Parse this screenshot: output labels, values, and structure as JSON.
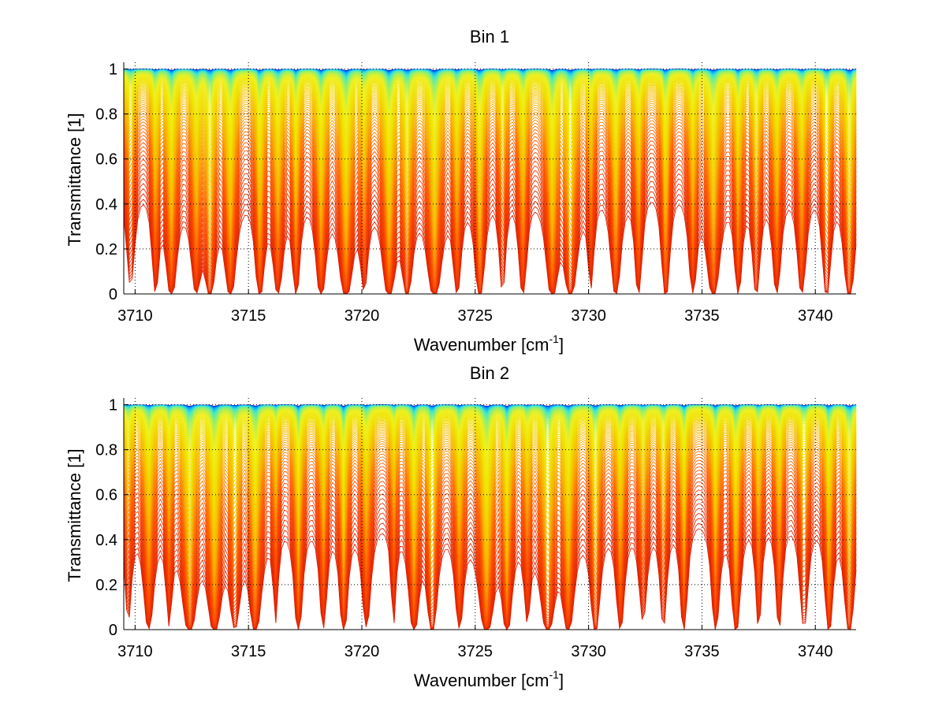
{
  "chart_data": [
    {
      "type": "line",
      "title": "Bin 1",
      "xlabel": "Wavenumber [cm",
      "xlabel_sup": "-1",
      "xlabel_end": "]",
      "ylabel": "Transmittance [1]",
      "xlim": [
        3709.5,
        3741.8
      ],
      "ylim": [
        0,
        1.03
      ],
      "xticks": [
        3710,
        3715,
        3720,
        3725,
        3730,
        3735,
        3740
      ],
      "xtick_labels": [
        "3710",
        "3715",
        "3720",
        "3725",
        "3730",
        "3735",
        "3740"
      ],
      "yticks": [
        0,
        0.2,
        0.4,
        0.6,
        0.8,
        1
      ],
      "ytick_labels": [
        "0",
        "0.2",
        "0.4",
        "0.6",
        "0.8",
        "1"
      ],
      "grid": true,
      "colormap": [
        "#0000c8",
        "#00a0ff",
        "#40e8d0",
        "#a0f060",
        "#f0f020",
        "#f0e000",
        "#f8b000",
        "#ff5000",
        "#e02000"
      ],
      "n_series": 110,
      "absorption_line_centers": [
        3709.8,
        3710.9,
        3711.6,
        3712.7,
        3713.3,
        3714.2,
        3715.5,
        3716.3,
        3717.1,
        3718.2,
        3719.3,
        3720.1,
        3721.2,
        3722.0,
        3723.2,
        3724.2,
        3725.2,
        3726.2,
        3727.1,
        3728.4,
        3729.2,
        3730.1,
        3731.2,
        3732.2,
        3733.4,
        3734.6,
        3735.5,
        3736.6,
        3737.4,
        3738.3,
        3739.4,
        3740.5,
        3741.5
      ]
    },
    {
      "type": "line",
      "title": "Bin 2",
      "xlabel": "Wavenumber [cm",
      "xlabel_sup": "-1",
      "xlabel_end": "]",
      "ylabel": "Transmittance [1]",
      "xlim": [
        3709.5,
        3741.8
      ],
      "ylim": [
        0,
        1.03
      ],
      "xticks": [
        3710,
        3715,
        3720,
        3725,
        3730,
        3735,
        3740
      ],
      "xtick_labels": [
        "3710",
        "3715",
        "3720",
        "3725",
        "3730",
        "3735",
        "3740"
      ],
      "yticks": [
        0,
        0.2,
        0.4,
        0.6,
        0.8,
        1
      ],
      "ytick_labels": [
        "0",
        "0.2",
        "0.4",
        "0.6",
        "0.8",
        "1"
      ],
      "grid": true,
      "colormap": [
        "#0000c8",
        "#00a0ff",
        "#40e8d0",
        "#a0f060",
        "#f0f020",
        "#f0e000",
        "#f8b000",
        "#ff5000",
        "#e02000"
      ],
      "n_series": 110,
      "absorption_line_centers": [
        3709.7,
        3710.6,
        3711.5,
        3712.4,
        3713.5,
        3714.4,
        3715.3,
        3716.2,
        3717.2,
        3718.3,
        3719.2,
        3720.2,
        3721.4,
        3722.3,
        3723.1,
        3724.3,
        3725.5,
        3726.4,
        3727.3,
        3728.2,
        3729.1,
        3730.3,
        3731.4,
        3732.4,
        3733.3,
        3734.2,
        3735.6,
        3736.5,
        3737.5,
        3738.4,
        3739.5,
        3740.6,
        3741.5
      ]
    }
  ]
}
